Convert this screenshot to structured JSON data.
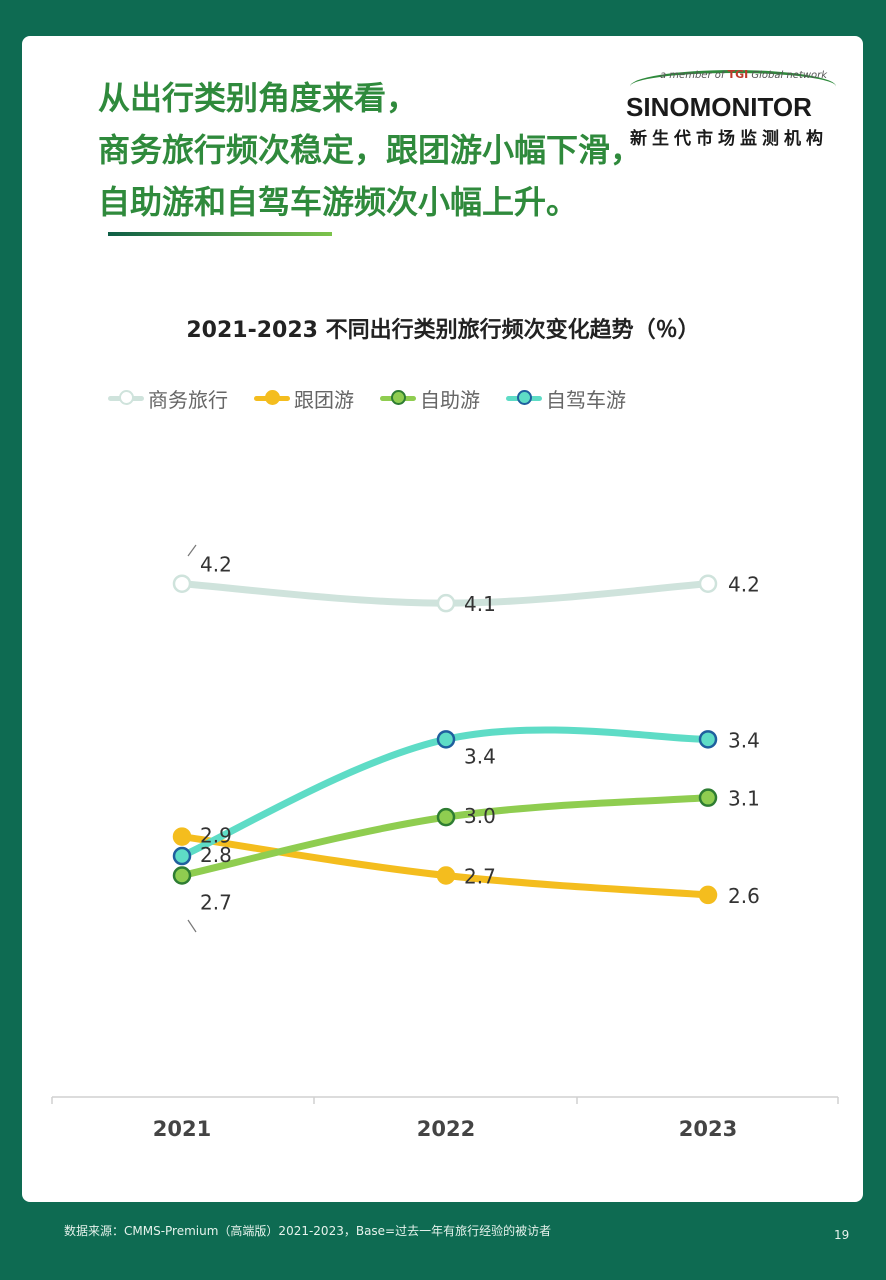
{
  "headline": {
    "line1": "从出行类别角度来看，",
    "line2": "商务旅行频次稳定，跟团游小幅下滑，",
    "line3": "自助游和自驾车游频次小幅上升。"
  },
  "logo": {
    "member_prefix": "a member of",
    "member_brand": "TGI",
    "member_suffix": "Global network",
    "name": "SINOMONITOR",
    "subtitle": "新生代市场监测机构"
  },
  "footer": {
    "source": "数据来源：CMMS-Premium（高端版）2021-2023，Base=过去一年有旅行经验的被访者",
    "page_number": "19"
  },
  "colors": {
    "background": "#0e6b52",
    "headline": "#2f8a3c"
  },
  "chart_data": {
    "type": "line",
    "title": "2021-2023 不同出行类别旅行频次变化趋势（％）",
    "categories": [
      "2021",
      "2022",
      "2023"
    ],
    "legend_position": "top",
    "grid": false,
    "ylim": [
      1.7,
      4.8
    ],
    "series": [
      {
        "name": "商务旅行",
        "values": [
          4.2,
          4.1,
          4.2
        ],
        "labels": [
          "4.2",
          "4.1",
          "4.2"
        ],
        "color": "#cfe3dc",
        "marker_fill": "#ffffff",
        "marker_stroke": "#cfe3dc"
      },
      {
        "name": "跟团游",
        "values": [
          2.9,
          2.7,
          2.6
        ],
        "labels": [
          "2.9",
          "2.7",
          "2.6"
        ],
        "color": "#f4bd1e",
        "marker_fill": "#f4bd1e",
        "marker_stroke": "#f4bd1e"
      },
      {
        "name": "自助游",
        "values": [
          2.7,
          3.0,
          3.1
        ],
        "labels": [
          "2.7",
          "3.0",
          "3.1"
        ],
        "color": "#8fcd50",
        "marker_fill": "#8fcd50",
        "marker_stroke": "#2e7d32"
      },
      {
        "name": "自驾车游",
        "values": [
          2.8,
          3.4,
          3.4
        ],
        "labels": [
          "2.8",
          "3.4",
          "3.4"
        ],
        "color": "#5edcc6",
        "marker_fill": "#5edcc6",
        "marker_stroke": "#1f5f9e"
      }
    ]
  }
}
